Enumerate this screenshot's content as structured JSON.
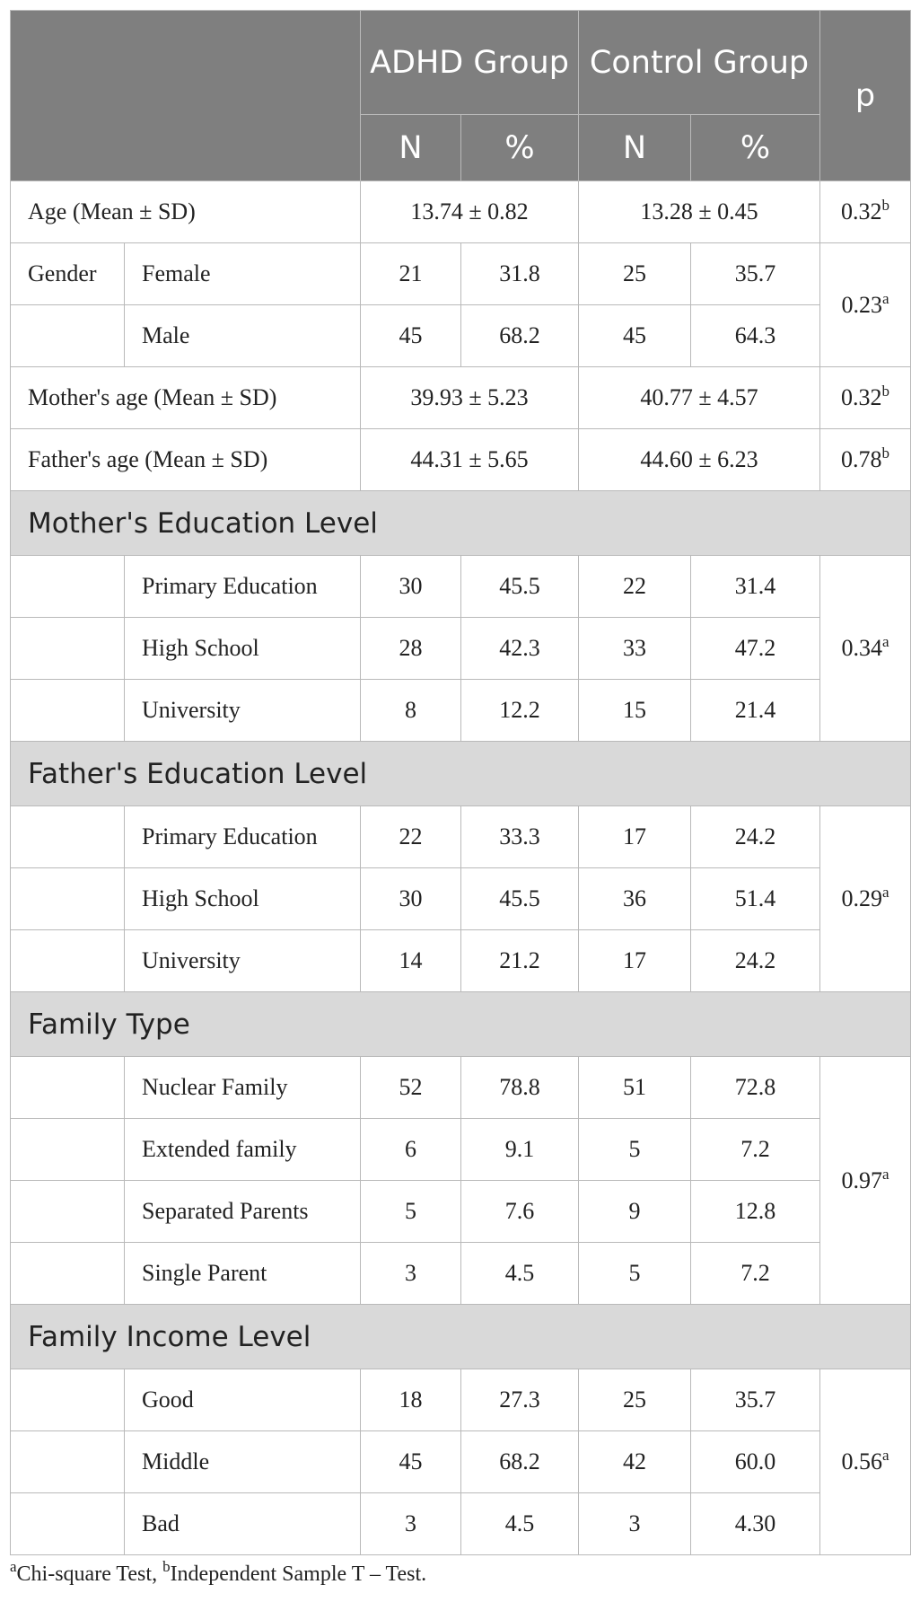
{
  "header": {
    "adhd_group": "ADHD Group",
    "control_group": "Control Group",
    "p": "p",
    "n": "N",
    "pct": "%"
  },
  "rows": {
    "age": {
      "label": "Age (Mean ± SD)",
      "adhd": "13.74 ± 0.82",
      "control": "13.28 ± 0.45",
      "p": "0.32",
      "p_sup": "b"
    },
    "gender": {
      "label": "Gender",
      "female": {
        "label": "Female",
        "adhd_n": "21",
        "adhd_pct": "31.8",
        "control_n": "25",
        "control_pct": "35.7"
      },
      "male": {
        "label": "Male",
        "adhd_n": "45",
        "adhd_pct": "68.2",
        "control_n": "45",
        "control_pct": "64.3"
      },
      "p": "0.23",
      "p_sup": "a"
    },
    "mother_age": {
      "label": "Mother's age (Mean ± SD)",
      "adhd": "39.93 ± 5.23",
      "control": "40.77 ± 4.57",
      "p": "0.32",
      "p_sup": "b"
    },
    "father_age": {
      "label": "Father's age (Mean ± SD)",
      "adhd": "44.31 ± 5.65",
      "control": "44.60 ± 6.23",
      "p": "0.78",
      "p_sup": "b"
    }
  },
  "sections": [
    {
      "title": "Mother's Education Level",
      "p": "0.34",
      "p_sup": "a",
      "items": [
        {
          "label": "Primary Education",
          "adhd_n": "30",
          "adhd_pct": "45.5",
          "control_n": "22",
          "control_pct": "31.4"
        },
        {
          "label": "High School",
          "adhd_n": "28",
          "adhd_pct": "42.3",
          "control_n": "33",
          "control_pct": "47.2"
        },
        {
          "label": "University",
          "adhd_n": "8",
          "adhd_pct": "12.2",
          "control_n": "15",
          "control_pct": "21.4"
        }
      ]
    },
    {
      "title": "Father's Education Level",
      "p": "0.29",
      "p_sup": "a",
      "items": [
        {
          "label": "Primary Education",
          "adhd_n": "22",
          "adhd_pct": "33.3",
          "control_n": "17",
          "control_pct": "24.2"
        },
        {
          "label": "High School",
          "adhd_n": "30",
          "adhd_pct": "45.5",
          "control_n": "36",
          "control_pct": "51.4"
        },
        {
          "label": "University",
          "adhd_n": "14",
          "adhd_pct": "21.2",
          "control_n": "17",
          "control_pct": "24.2"
        }
      ]
    },
    {
      "title": "Family Type",
      "p": "0.97",
      "p_sup": "a",
      "items": [
        {
          "label": "Nuclear Family",
          "adhd_n": "52",
          "adhd_pct": "78.8",
          "control_n": "51",
          "control_pct": "72.8"
        },
        {
          "label": "Extended family",
          "adhd_n": "6",
          "adhd_pct": "9.1",
          "control_n": "5",
          "control_pct": "7.2"
        },
        {
          "label": "Separated Parents",
          "adhd_n": "5",
          "adhd_pct": "7.6",
          "control_n": "9",
          "control_pct": "12.8"
        },
        {
          "label": "Single Parent",
          "adhd_n": "3",
          "adhd_pct": "4.5",
          "control_n": "5",
          "control_pct": "7.2"
        }
      ]
    },
    {
      "title": "Family Income Level",
      "p": "0.56",
      "p_sup": "a",
      "items": [
        {
          "label": "Good",
          "adhd_n": "18",
          "adhd_pct": "27.3",
          "control_n": "25",
          "control_pct": "35.7"
        },
        {
          "label": "Middle",
          "adhd_n": "45",
          "adhd_pct": "68.2",
          "control_n": "42",
          "control_pct": "60.0"
        },
        {
          "label": "Bad",
          "adhd_n": "3",
          "adhd_pct": "4.5",
          "control_n": "3",
          "control_pct": "4.30"
        }
      ]
    }
  ],
  "footnote": {
    "a_sup": "a",
    "a_text": "Chi-square Test, ",
    "b_sup": "b",
    "b_text": "Independent Sample T – Test."
  },
  "colors": {
    "header_bg": "#7f7f7f",
    "section_bg": "#d9d9d9",
    "border": "#b9b9b9",
    "text": "#222222"
  }
}
